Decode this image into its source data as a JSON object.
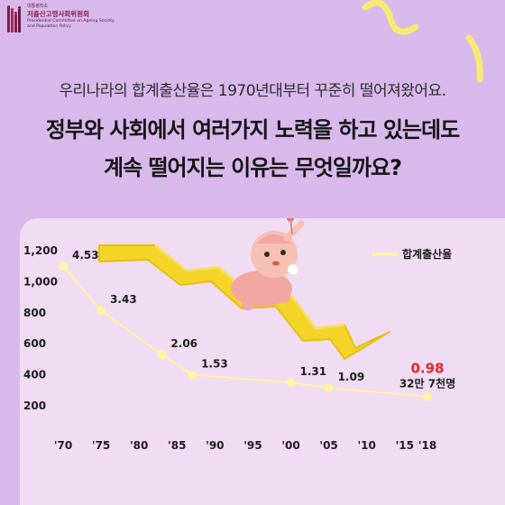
{
  "logo": {
    "top_text": "대통령직속",
    "title": "저출산고령사회위원회",
    "subtitle": "Presidential Committee on Ageing Society and Population Policy"
  },
  "subtitle": "우리나라의 합계출산율은 1970년대부터 꾸준히 떨어져왔어요.",
  "headline": {
    "line1": "정부와 사회에서 여러가지 노력을 하고 있는데도",
    "line2": "계속 떨어지는 이유는 무엇일까요?"
  },
  "colors": {
    "background": "#d9b8ec",
    "chart_panel": "#f0dcf3",
    "series": "#fff3a3",
    "arrow": "#f4d427",
    "highlight": "#e8242a"
  },
  "chart_data": {
    "type": "line",
    "title": "",
    "xlabel": "",
    "ylabel": "",
    "x_ticks": [
      "'70",
      "'75",
      "'80",
      "'85",
      "'90",
      "'95",
      "'00",
      "'05",
      "'10",
      "'15",
      "'18"
    ],
    "x_tick_years": [
      1970,
      1975,
      1980,
      1985,
      1990,
      1995,
      2000,
      2005,
      2010,
      2015,
      2018
    ],
    "y_ticks": [
      "1,200",
      "1,000",
      "800",
      "600",
      "400",
      "200"
    ],
    "y_tick_values": [
      1200,
      1000,
      800,
      600,
      400,
      200
    ],
    "ylim": [
      200,
      1200
    ],
    "grid": false,
    "legend": {
      "position": "top-right",
      "label": "합계출산율"
    },
    "series": [
      {
        "name": "합계출산율",
        "points": [
          {
            "year": 1970,
            "value": 1100,
            "label": "4.53"
          },
          {
            "year": 1975,
            "value": 815,
            "label": "3.43"
          },
          {
            "year": 1983,
            "value": 530,
            "label": "2.06"
          },
          {
            "year": 1987,
            "value": 400,
            "label": "1.53"
          },
          {
            "year": 2000,
            "value": 350,
            "label": "1.31"
          },
          {
            "year": 2005,
            "value": 315,
            "label": "1.09"
          },
          {
            "year": 2018,
            "value": 260,
            "label": "0.98"
          }
        ]
      }
    ],
    "final_annotation": {
      "rate": "0.98",
      "births": "32만 7천명"
    }
  }
}
